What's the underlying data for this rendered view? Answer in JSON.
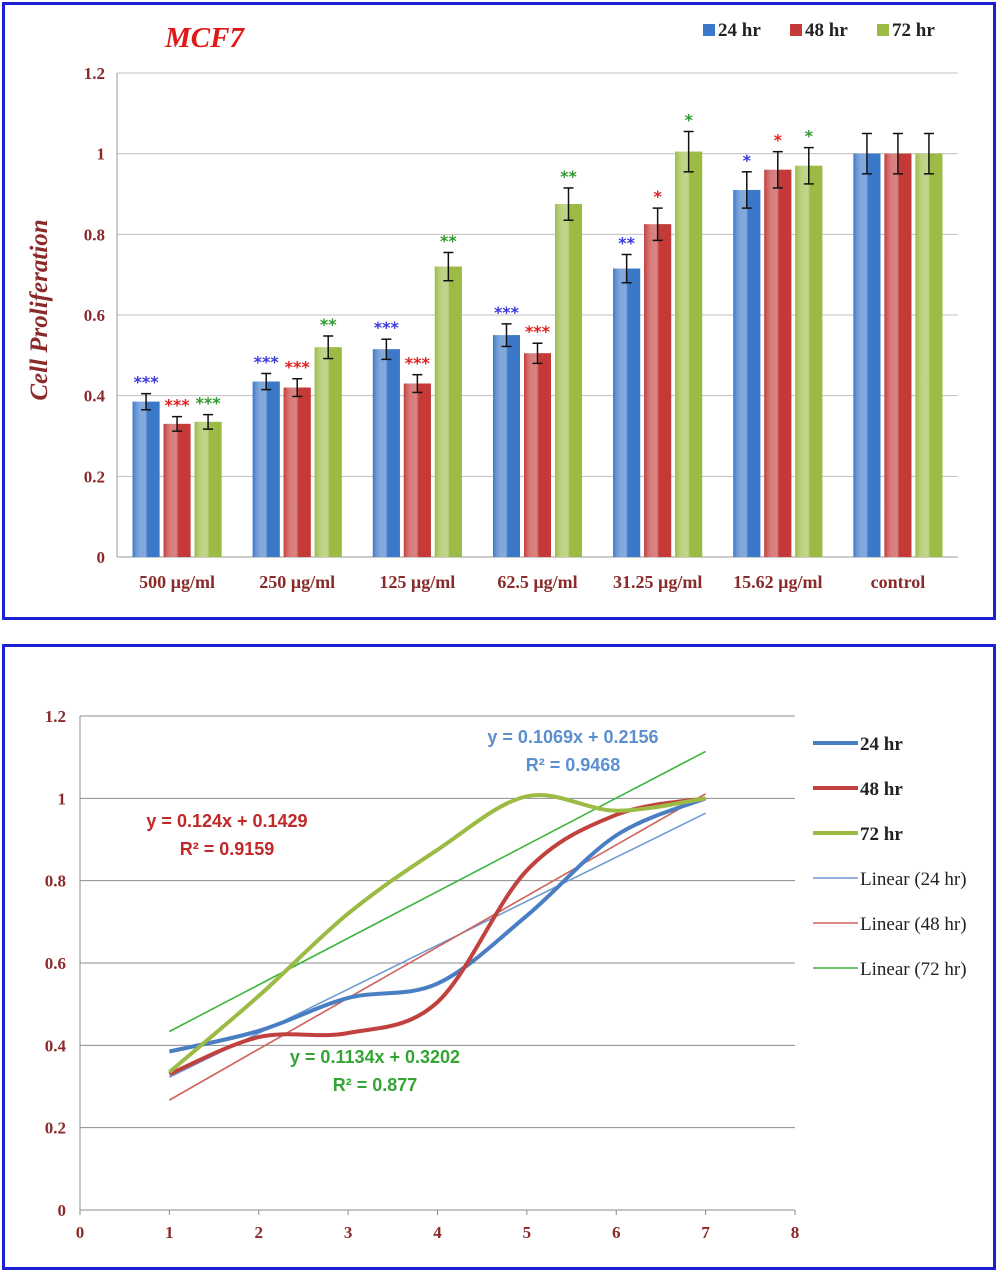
{
  "chart_data": [
    {
      "type": "bar",
      "title": "MCF7",
      "ylabel": "Cell Proliferation",
      "xlabel": "",
      "ylim": [
        0,
        1.2
      ],
      "yticks": [
        "0",
        "0.2",
        "0.4",
        "0.6",
        "0.8",
        "1",
        "1.2"
      ],
      "grid": true,
      "legend_position": "top-right",
      "categories": [
        "500 µg/ml",
        "250 µg/ml",
        "125 µg/ml",
        "62.5 µg/ml",
        "31.25 µg/ml",
        "15.62 µg/ml",
        "control"
      ],
      "series": [
        {
          "name": "24 hr",
          "color": "#3c78c8",
          "values": [
            0.385,
            0.435,
            0.515,
            0.55,
            0.715,
            0.91,
            1.0
          ],
          "errors": [
            0.02,
            0.02,
            0.025,
            0.028,
            0.035,
            0.045,
            0.05
          ],
          "sig": [
            "***",
            "***",
            "***",
            "***",
            "**",
            "*",
            ""
          ],
          "sig_color": "#3a3adc"
        },
        {
          "name": "48 hr",
          "color": "#c33a38",
          "values": [
            0.33,
            0.42,
            0.43,
            0.505,
            0.825,
            0.96,
            1.0
          ],
          "errors": [
            0.018,
            0.022,
            0.022,
            0.025,
            0.04,
            0.045,
            0.05
          ],
          "sig": [
            "***",
            "***",
            "***",
            "***",
            "*",
            "*",
            ""
          ],
          "sig_color": "#e02020"
        },
        {
          "name": "72 hr",
          "color": "#9bbb45",
          "values": [
            0.335,
            0.52,
            0.72,
            0.875,
            1.005,
            0.97,
            1.0
          ],
          "errors": [
            0.018,
            0.028,
            0.035,
            0.04,
            0.05,
            0.045,
            0.05
          ],
          "sig": [
            "***",
            "**",
            "**",
            "**",
            "*",
            "*",
            ""
          ],
          "sig_color": "#2e9a2e"
        }
      ]
    },
    {
      "type": "line",
      "title": "",
      "xlabel": "",
      "ylabel": "",
      "xlim": [
        0,
        8
      ],
      "ylim": [
        0,
        1.2
      ],
      "xticks": [
        "0",
        "1",
        "2",
        "3",
        "4",
        "5",
        "6",
        "7",
        "8"
      ],
      "yticks": [
        "0",
        "0.2",
        "0.4",
        "0.6",
        "0.8",
        "1",
        "1.2"
      ],
      "grid": true,
      "legend_position": "right",
      "x": [
        1,
        2,
        3,
        4,
        5,
        6,
        7
      ],
      "series": [
        {
          "name": "24 hr",
          "color": "#4a7ec2",
          "values": [
            0.385,
            0.435,
            0.515,
            0.55,
            0.715,
            0.91,
            1.0
          ]
        },
        {
          "name": "48 hr",
          "color": "#c0413e",
          "values": [
            0.33,
            0.42,
            0.43,
            0.505,
            0.825,
            0.96,
            1.0
          ]
        },
        {
          "name": "72 hr",
          "color": "#9bbb45",
          "values": [
            0.335,
            0.52,
            0.72,
            0.875,
            1.005,
            0.97,
            1.0
          ]
        }
      ],
      "trendlines": [
        {
          "name": "Linear (24 hr)",
          "color": "#6f9bd1",
          "slope": 0.1069,
          "intercept": 0.2156,
          "equation": "y = 0.1069x + 0.2156",
          "r2": "R² = 0.9468",
          "label_color": "#5b8fd0"
        },
        {
          "name": "Linear (48 hr)",
          "color": "#d0605c",
          "slope": 0.124,
          "intercept": 0.1429,
          "equation": "y = 0.124x + 0.1429",
          "r2": "R² = 0.9159",
          "label_color": "#c0282a"
        },
        {
          "name": "Linear (72 hr)",
          "color": "#3cb43c",
          "slope": 0.1134,
          "intercept": 0.3202,
          "equation": "y = 0.1134x + 0.3202",
          "r2": "R² = 0.877",
          "label_color": "#34a534"
        }
      ]
    }
  ]
}
